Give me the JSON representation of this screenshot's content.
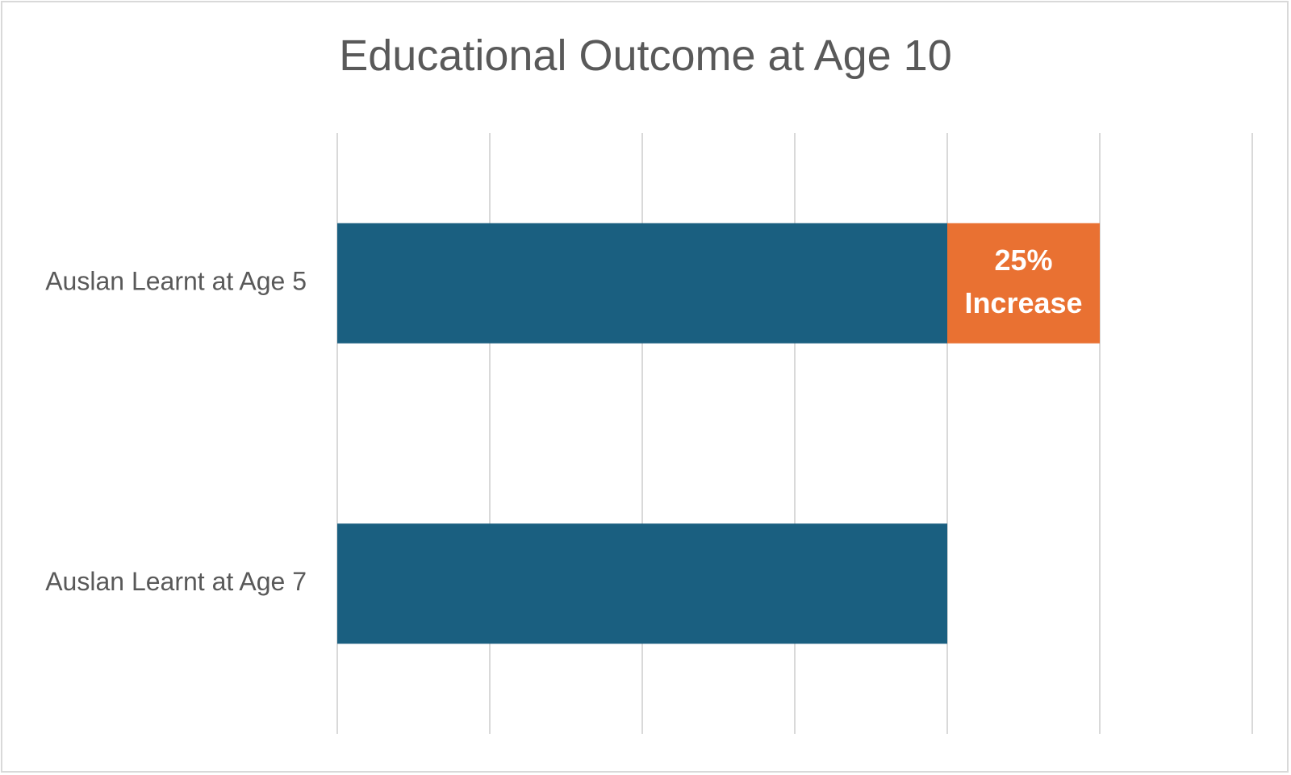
{
  "chart_data": {
    "type": "bar",
    "orientation": "horizontal",
    "stacked": true,
    "title": "Educational Outcome at Age 10",
    "xlabel": "",
    "ylabel": "",
    "categories": [
      "Auslan Learnt at Age 5",
      "Auslan Learnt at Age 7"
    ],
    "series": [
      {
        "color": "#1a5f80",
        "values": [
          100,
          100
        ]
      },
      {
        "color": "#e97132",
        "values": [
          25,
          0
        ],
        "labels": [
          "25%\nIncrease",
          ""
        ]
      }
    ],
    "xlim": [
      0,
      150
    ],
    "x_tick_step": 25,
    "grid": true,
    "legend": "none"
  }
}
